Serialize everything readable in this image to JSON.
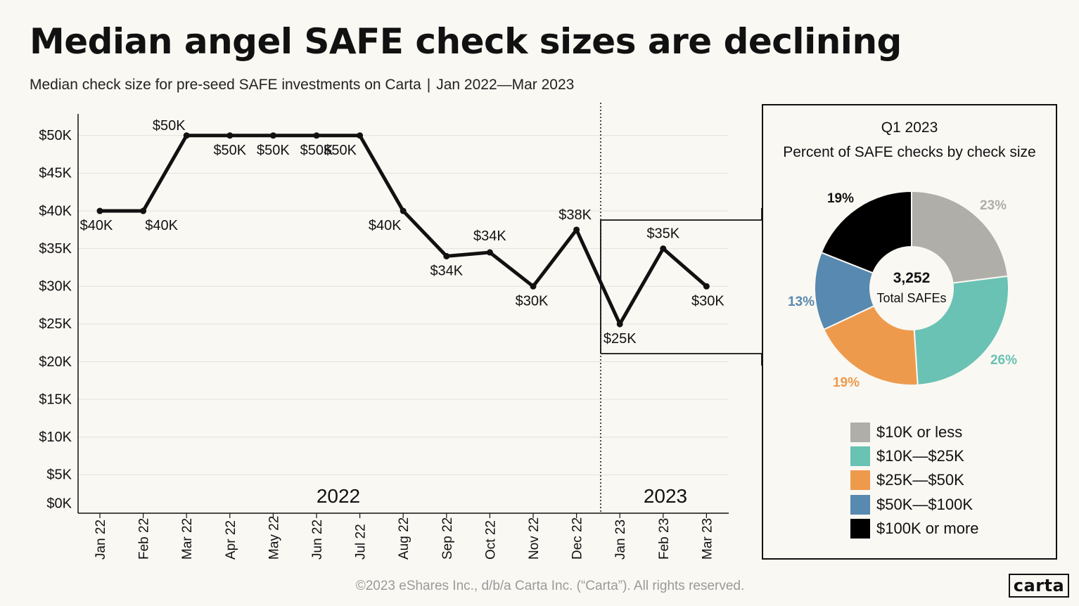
{
  "title": "Median angel SAFE check sizes are declining",
  "subtitle": {
    "main": "Median check size for pre-seed SAFE investments on Carta",
    "separator": "|",
    "range": "Jan 2022—Mar 2023"
  },
  "colors": {
    "background": "#faf8f3",
    "line": "#111111",
    "grid": "#e3e1dc",
    "gray": "#b0aea9",
    "teal": "#69c2b3",
    "orange": "#ee9a4d",
    "blue": "#5889b0",
    "black": "#000000"
  },
  "chart_data": [
    {
      "type": "line",
      "categories": [
        "Jan 22",
        "Feb 22",
        "Mar 22",
        "Apr 22",
        "May 22",
        "Jun 22",
        "Jul 22",
        "Aug 22",
        "Sep 22",
        "Oct 22",
        "Nov 22",
        "Dec 22",
        "Jan 23",
        "Feb 23",
        "Mar 23"
      ],
      "values": [
        40000,
        40000,
        50000,
        50000,
        50000,
        50000,
        50000,
        40000,
        34000,
        34500,
        30000,
        37500,
        25000,
        35000,
        30000
      ],
      "data_labels": [
        "$40K",
        "$40K",
        "$50K",
        "$50K",
        "$50K",
        "$50K",
        "$50K",
        "$40K",
        "$34K",
        "$34K",
        "$30K",
        "$38K",
        "$25K",
        "$35K",
        "$30K"
      ],
      "y_ticks": [
        "$0K",
        "$5K",
        "$10K",
        "$15K",
        "$20K",
        "$25K",
        "$30K",
        "$35K",
        "$40K",
        "$45K",
        "$50K"
      ],
      "ylim": [
        0,
        52500
      ],
      "year_labels": [
        "2022",
        "2023"
      ],
      "grid": true
    },
    {
      "type": "pie",
      "title": "Q1 2023",
      "subtitle": "Percent of SAFE checks by check size",
      "center_value": "3,252",
      "center_label": "Total SAFEs",
      "slices": [
        {
          "label": "$10K or less",
          "value": 23,
          "display": "23%",
          "color": "#b0aea9"
        },
        {
          "label": "$10K—$25K",
          "value": 26,
          "display": "26%",
          "color": "#69c2b3"
        },
        {
          "label": "$25K—$50K",
          "value": 19,
          "display": "19%",
          "color": "#ee9a4d"
        },
        {
          "label": "$50K—$100K",
          "value": 13,
          "display": "13%",
          "color": "#5889b0"
        },
        {
          "label": "$100K or more",
          "value": 19,
          "display": "19%",
          "color": "#000000"
        }
      ]
    }
  ],
  "footer": "©2023 eShares Inc., d/b/a Carta Inc. (“Carta”). All rights reserved.",
  "logo_text": "carta"
}
